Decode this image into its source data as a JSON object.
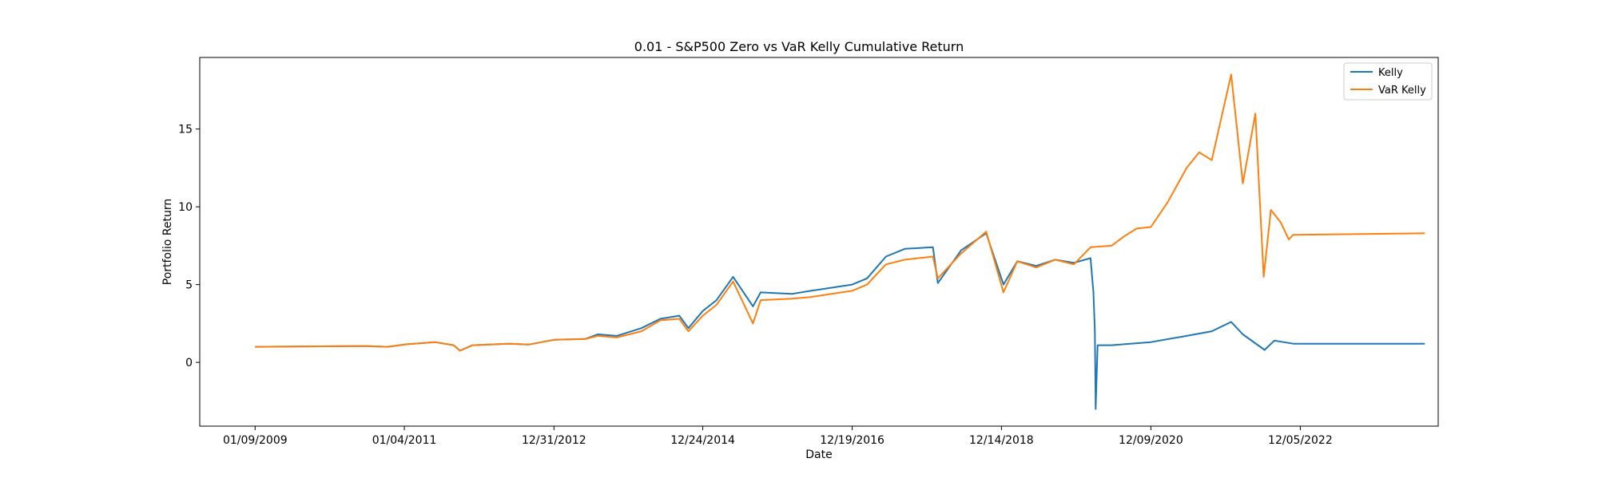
{
  "chart_data": {
    "type": "line",
    "title": "0.01 - S&P500 Zero vs VaR Kelly Cumulative Return",
    "xlabel": "Date",
    "ylabel": "Portfolio Return",
    "x_tick_labels": [
      "01/09/2009",
      "01/04/2011",
      "12/31/2012",
      "12/24/2014",
      "12/19/2016",
      "12/14/2018",
      "12/09/2020",
      "12/05/2022"
    ],
    "y_ticks": [
      0,
      5,
      10,
      15
    ],
    "xlim": [
      "2008-04-15",
      "2024-10-05"
    ],
    "ylim": [
      -4.1,
      19.6
    ],
    "grid": false,
    "legend_position": "top-right",
    "series": [
      {
        "name": "Kelly",
        "color": "#1f77b4",
        "points": [
          [
            "2009-01-09",
            1.0
          ],
          [
            "2010-07-01",
            1.05
          ],
          [
            "2010-10-15",
            1.0
          ],
          [
            "2011-01-04",
            1.15
          ],
          [
            "2011-06-01",
            1.3
          ],
          [
            "2011-09-01",
            1.1
          ],
          [
            "2011-10-01",
            0.75
          ],
          [
            "2011-12-01",
            1.1
          ],
          [
            "2012-06-01",
            1.2
          ],
          [
            "2012-09-01",
            1.15
          ],
          [
            "2012-12-31",
            1.45
          ],
          [
            "2013-06-01",
            1.5
          ],
          [
            "2013-08-01",
            1.8
          ],
          [
            "2013-11-01",
            1.7
          ],
          [
            "2014-03-01",
            2.2
          ],
          [
            "2014-06-01",
            2.8
          ],
          [
            "2014-09-01",
            3.0
          ],
          [
            "2014-10-15",
            2.2
          ],
          [
            "2014-12-24",
            3.3
          ],
          [
            "2015-03-01",
            4.0
          ],
          [
            "2015-05-20",
            5.5
          ],
          [
            "2015-08-25",
            3.6
          ],
          [
            "2015-10-01",
            4.5
          ],
          [
            "2016-03-01",
            4.4
          ],
          [
            "2016-06-01",
            4.6
          ],
          [
            "2016-12-19",
            5.0
          ],
          [
            "2017-03-01",
            5.4
          ],
          [
            "2017-06-01",
            6.8
          ],
          [
            "2017-09-01",
            7.3
          ],
          [
            "2018-01-15",
            7.4
          ],
          [
            "2018-02-08",
            5.1
          ],
          [
            "2018-06-01",
            7.2
          ],
          [
            "2018-10-01",
            8.3
          ],
          [
            "2018-12-24",
            5.0
          ],
          [
            "2019-03-01",
            6.5
          ],
          [
            "2019-06-01",
            6.2
          ],
          [
            "2019-09-01",
            6.6
          ],
          [
            "2019-12-01",
            6.4
          ],
          [
            "2020-02-20",
            6.7
          ],
          [
            "2020-03-05",
            4.5
          ],
          [
            "2020-03-12",
            2.0
          ],
          [
            "2020-03-16",
            -3.0
          ],
          [
            "2020-03-25",
            1.1
          ],
          [
            "2020-06-01",
            1.1
          ],
          [
            "2020-12-09",
            1.3
          ],
          [
            "2021-06-01",
            1.7
          ],
          [
            "2021-10-01",
            2.0
          ],
          [
            "2022-01-03",
            2.6
          ],
          [
            "2022-03-01",
            1.8
          ],
          [
            "2022-06-15",
            0.8
          ],
          [
            "2022-08-01",
            1.4
          ],
          [
            "2022-11-01",
            1.2
          ],
          [
            "2024-08-01",
            1.2
          ]
        ]
      },
      {
        "name": "VaR Kelly",
        "color": "#ff7f0e",
        "points": [
          [
            "2009-01-09",
            1.0
          ],
          [
            "2010-07-01",
            1.05
          ],
          [
            "2010-10-15",
            1.0
          ],
          [
            "2011-01-04",
            1.15
          ],
          [
            "2011-06-01",
            1.3
          ],
          [
            "2011-09-01",
            1.1
          ],
          [
            "2011-10-01",
            0.75
          ],
          [
            "2011-12-01",
            1.1
          ],
          [
            "2012-06-01",
            1.2
          ],
          [
            "2012-09-01",
            1.15
          ],
          [
            "2012-12-31",
            1.45
          ],
          [
            "2013-06-01",
            1.5
          ],
          [
            "2013-08-01",
            1.7
          ],
          [
            "2013-11-01",
            1.6
          ],
          [
            "2014-03-01",
            2.0
          ],
          [
            "2014-06-01",
            2.7
          ],
          [
            "2014-09-01",
            2.8
          ],
          [
            "2014-10-15",
            2.0
          ],
          [
            "2014-12-24",
            3.0
          ],
          [
            "2015-03-01",
            3.7
          ],
          [
            "2015-05-20",
            5.2
          ],
          [
            "2015-08-25",
            2.5
          ],
          [
            "2015-10-01",
            4.0
          ],
          [
            "2016-03-01",
            4.1
          ],
          [
            "2016-06-01",
            4.2
          ],
          [
            "2016-12-19",
            4.6
          ],
          [
            "2017-03-01",
            5.0
          ],
          [
            "2017-06-01",
            6.3
          ],
          [
            "2017-09-01",
            6.6
          ],
          [
            "2018-01-15",
            6.8
          ],
          [
            "2018-02-08",
            5.4
          ],
          [
            "2018-06-01",
            7.0
          ],
          [
            "2018-10-01",
            8.4
          ],
          [
            "2018-12-24",
            4.5
          ],
          [
            "2019-03-01",
            6.5
          ],
          [
            "2019-06-01",
            6.1
          ],
          [
            "2019-09-01",
            6.6
          ],
          [
            "2019-12-01",
            6.3
          ],
          [
            "2020-02-20",
            7.4
          ],
          [
            "2020-06-01",
            7.5
          ],
          [
            "2020-08-01",
            8.1
          ],
          [
            "2020-10-01",
            8.6
          ],
          [
            "2020-12-09",
            8.7
          ],
          [
            "2021-03-01",
            10.3
          ],
          [
            "2021-06-01",
            12.5
          ],
          [
            "2021-08-01",
            13.5
          ],
          [
            "2021-10-01",
            13.0
          ],
          [
            "2022-01-03",
            18.5
          ],
          [
            "2022-03-01",
            11.5
          ],
          [
            "2022-05-01",
            16.0
          ],
          [
            "2022-06-10",
            5.5
          ],
          [
            "2022-07-15",
            9.8
          ],
          [
            "2022-09-01",
            9.0
          ],
          [
            "2022-10-10",
            7.9
          ],
          [
            "2022-11-01",
            8.2
          ],
          [
            "2024-08-01",
            8.3
          ]
        ]
      }
    ]
  }
}
